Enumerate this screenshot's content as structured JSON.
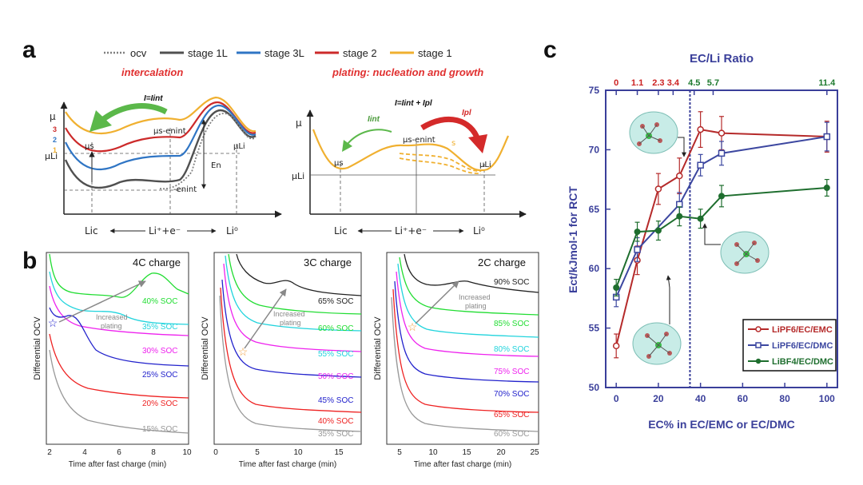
{
  "panel_letters": {
    "a": "a",
    "b": "b",
    "c": "c"
  },
  "panel_a": {
    "legend": [
      "ocv",
      "stage 1L",
      "stage 3L",
      "stage 2",
      "stage 1"
    ],
    "legend_colors": [
      "#7f7f7f",
      "#505050",
      "#2f75c4",
      "#cc2a2a",
      "#f0b030"
    ],
    "left": {
      "title": "intercalation",
      "mu": "μ",
      "mu_li": "μLi",
      "stage_numbers": [
        "3",
        "2",
        "1"
      ],
      "current_label": "I=Iint",
      "mus": "μs",
      "mus_en": "μs-enint",
      "neg_en": "-enint",
      "en": "En",
      "mu_li_right": "μLi",
      "x_labels": [
        "Lic",
        "Li⁺+e⁻",
        "Li⁰"
      ]
    },
    "right": {
      "title": "plating: nucleation and growth",
      "mu": "μ",
      "mu_li": "μLi",
      "current_label": "I=Iint + Ipl",
      "iint": "Iint",
      "ipl": "Ipl",
      "mus": "μs",
      "mus_en": "μs-enint",
      "s": "s",
      "mu_li_right": "μLi",
      "x_labels": [
        "Lic",
        "Li⁺+e⁻",
        "Li⁰"
      ]
    }
  },
  "panel_b": {
    "ylabel": "Differential OCV",
    "xlabel": "Time after fast charge (min)",
    "annotation": [
      "Increased",
      "plating"
    ],
    "subplots": [
      {
        "title": "4C charge",
        "xticks": [
          "2",
          "4",
          "6",
          "8",
          "10"
        ],
        "curves": [
          {
            "label": "40% SOC",
            "color": "#22dd33"
          },
          {
            "label": "35% SOC",
            "color": "#22d4dd"
          },
          {
            "label": "30% SOC",
            "color": "#ee22ee"
          },
          {
            "label": "25% SOC",
            "color": "#2222cc"
          },
          {
            "label": "20% SOC",
            "color": "#ee2222"
          },
          {
            "label": "15% SOC",
            "color": "#999999"
          }
        ]
      },
      {
        "title": "3C charge",
        "xticks": [
          "0",
          "5",
          "10",
          "15"
        ],
        "curves": [
          {
            "label": "65% SOC",
            "color": "#222222"
          },
          {
            "label": "60% SOC",
            "color": "#22dd33"
          },
          {
            "label": "55% SOC",
            "color": "#22d4dd"
          },
          {
            "label": "50% SOC",
            "color": "#ee22ee"
          },
          {
            "label": "45% SOC",
            "color": "#2222cc"
          },
          {
            "label": "40% SOC",
            "color": "#ee2222"
          },
          {
            "label": "35% SOC",
            "color": "#999999"
          }
        ]
      },
      {
        "title": "2C charge",
        "xticks": [
          "5",
          "10",
          "15",
          "20",
          "25"
        ],
        "curves": [
          {
            "label": "90% SOC",
            "color": "#222222"
          },
          {
            "label": "85% SOC",
            "color": "#22dd33"
          },
          {
            "label": "80% SOC",
            "color": "#22d4dd"
          },
          {
            "label": "75% SOC",
            "color": "#ee22ee"
          },
          {
            "label": "70% SOC",
            "color": "#2222cc"
          },
          {
            "label": "65% SOC",
            "color": "#ee2222"
          },
          {
            "label": "60% SOC",
            "color": "#999999"
          }
        ]
      }
    ]
  },
  "chart_data": {
    "type": "line",
    "title": "EC/Li Ratio",
    "xlabel": "EC% in EC/EMC or EC/DMC",
    "ylabel": "Ect/kJmol-1 for RCT",
    "xlim": [
      -5,
      105
    ],
    "ylim": [
      50,
      75
    ],
    "xticks": [
      0,
      20,
      40,
      60,
      80,
      100
    ],
    "yticks": [
      50,
      55,
      60,
      65,
      70,
      75
    ],
    "top_ticks": [
      {
        "x": 0,
        "label": "0",
        "color": "#cc2222"
      },
      {
        "x": 10,
        "label": "1.1",
        "color": "#cc2222"
      },
      {
        "x": 20,
        "label": "2.3",
        "color": "#cc2222"
      },
      {
        "x": 27,
        "label": "3.4",
        "color": "#cc2222"
      },
      {
        "x": 37,
        "label": "4.5",
        "color": "#1e7a2e"
      },
      {
        "x": 46,
        "label": "5.7",
        "color": "#1e7a2e"
      },
      {
        "x": 100,
        "label": "11.4",
        "color": "#1e7a2e"
      }
    ],
    "dashed_line_x": 35,
    "series": [
      {
        "name": "LiPF6/EC/EMC",
        "color": "#b52a2a",
        "marker": "circle-open",
        "x": [
          0,
          10,
          20,
          30,
          40,
          50,
          100
        ],
        "values": [
          53.5,
          60.7,
          66.7,
          67.8,
          71.7,
          71.4,
          71.1
        ],
        "err": [
          1.0,
          1.2,
          1.3,
          1.5,
          1.5,
          1.4,
          1.3
        ]
      },
      {
        "name": "LiPF6/EC/DMC",
        "color": "#3c47a0",
        "marker": "square-open",
        "x": [
          0,
          10,
          30,
          40,
          50,
          100
        ],
        "values": [
          57.6,
          61.6,
          65.4,
          68.7,
          69.7,
          71.1
        ],
        "err": [
          0.8,
          1.0,
          1.0,
          0.9,
          1.0,
          1.2
        ]
      },
      {
        "name": "LiBF4/EC/DMC",
        "color": "#1e6e2e",
        "marker": "circle-filled",
        "x": [
          0,
          10,
          20,
          30,
          40,
          50,
          100
        ],
        "values": [
          58.4,
          63.1,
          63.2,
          64.4,
          64.2,
          66.1,
          66.8
        ],
        "err": [
          0.7,
          0.8,
          0.8,
          0.8,
          0.8,
          0.9,
          0.7
        ]
      }
    ],
    "legend": [
      "LiPF6/EC/EMC",
      "LiPF6/EC/DMC",
      "LiBF4/EC/DMC"
    ]
  }
}
